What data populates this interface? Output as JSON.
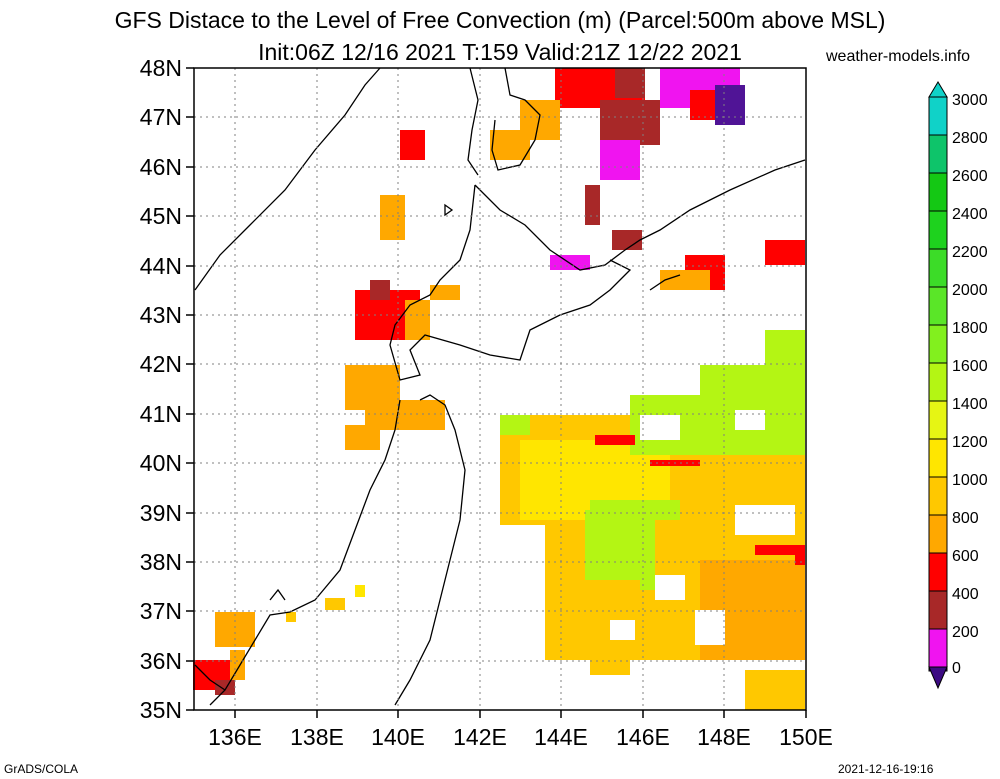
{
  "title": {
    "line1": "GFS Distace to the Level of Free Convection (m) (Parcel:500m above MSL)",
    "line2": "Init:06Z 12/16 2021 T:159 Valid:21Z 12/22 2021"
  },
  "source": "weather-models.info",
  "footer": {
    "left": "GrADS/COLA",
    "right": "2021-12-16-19:16"
  },
  "map": {
    "region": "Japan / Hokkaido / Sakhalin",
    "lat_labels": [
      "48N",
      "47N",
      "46N",
      "45N",
      "44N",
      "43N",
      "42N",
      "41N",
      "40N",
      "39N",
      "38N",
      "37N",
      "36N",
      "35N"
    ],
    "lon_labels": [
      "136E",
      "138E",
      "140E",
      "142E",
      "144E",
      "146E",
      "148E",
      "150E"
    ],
    "lat_range": [
      35,
      48
    ],
    "lon_range": [
      135,
      150
    ]
  },
  "colorbar": {
    "labels": [
      "3000",
      "2800",
      "2600",
      "2400",
      "2200",
      "2000",
      "1800",
      "1600",
      "1400",
      "1200",
      "1000",
      "800",
      "600",
      "400",
      "200",
      "0"
    ],
    "colors": [
      "#10d2c8",
      "#0ec46a",
      "#14c814",
      "#1ed21e",
      "#3cdc28",
      "#5ae628",
      "#82f01e",
      "#b4f514",
      "#e6f514",
      "#ffe600",
      "#ffc800",
      "#ffa800",
      "#ff0000",
      "#a82828",
      "#f014f0",
      "#501496",
      "#3c0a82"
    ]
  }
}
